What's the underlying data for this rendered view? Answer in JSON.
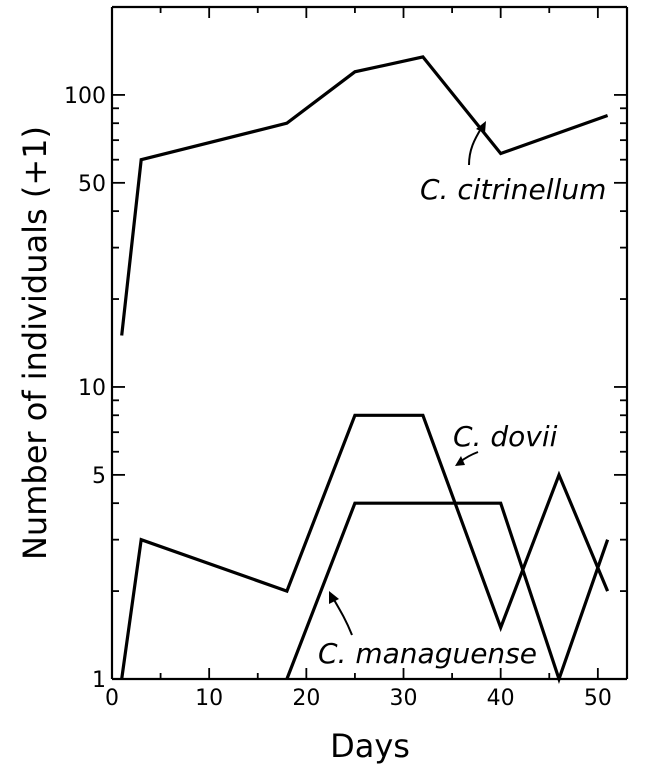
{
  "chart_data": {
    "type": "line",
    "title": "",
    "xlabel": "Days",
    "ylabel": "Number of individuals (+1)",
    "xlim": [
      0,
      53
    ],
    "ylim": [
      1,
      200
    ],
    "yscale": "log",
    "grid": false,
    "x_ticks": [
      0,
      10,
      20,
      30,
      40,
      50
    ],
    "x_minor_ticks": [
      5,
      15,
      25,
      35,
      45
    ],
    "y_ticks": [
      {
        "value": 1,
        "label": "1"
      },
      {
        "value": 5,
        "label": "5"
      },
      {
        "value": 10,
        "label": "10"
      },
      {
        "value": 50,
        "label": "50"
      },
      {
        "value": 100,
        "label": "100"
      }
    ],
    "y_minor_ticks": [
      2,
      3,
      4,
      6,
      7,
      8,
      9,
      20,
      30,
      40,
      60,
      70,
      80,
      90,
      200
    ],
    "series": [
      {
        "name": "C. citrinellum",
        "x": [
          1,
          3,
          18,
          25,
          32,
          40,
          51
        ],
        "y": [
          15,
          60,
          80,
          120,
          135,
          63,
          85
        ]
      },
      {
        "name": "C. dovii",
        "x": [
          1,
          3,
          18,
          25,
          32,
          40,
          46,
          51
        ],
        "y": [
          1,
          3,
          2,
          8,
          8,
          1.5,
          5,
          2
        ]
      },
      {
        "name": "C. managuense",
        "x": [
          18,
          25,
          40,
          46,
          51
        ],
        "y": [
          1,
          4,
          4,
          1,
          3
        ]
      }
    ]
  }
}
